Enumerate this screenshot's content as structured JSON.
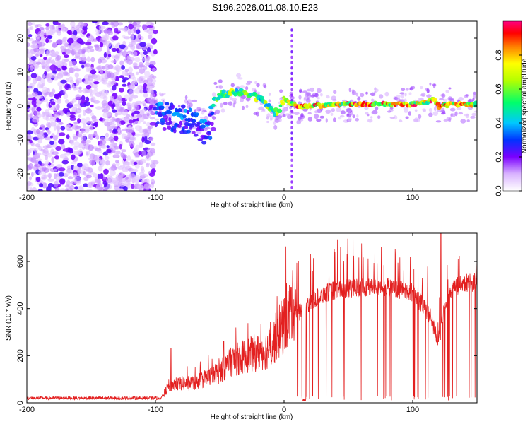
{
  "title": "S196.2026.011.08.10.E23",
  "chart_data": [
    {
      "type": "heatmap",
      "xlabel": "Height of straight line (km)",
      "ylabel": "Frequency (Hz)",
      "xlim": [
        -200,
        150
      ],
      "ylim": [
        -25,
        25
      ],
      "xticks": [
        "-200",
        "-100",
        "0",
        "100"
      ],
      "yticks": [
        "-20",
        "-10",
        "0",
        "10",
        "20"
      ],
      "colorbar": {
        "label": "Normalized spectral amplitude",
        "range": [
          0,
          1
        ],
        "ticks": [
          "0.0",
          "0.2",
          "0.4",
          "0.6",
          "0.8"
        ]
      },
      "description_series": {
        "noise_region_km": [
          -200,
          -100
        ],
        "trace": {
          "name": "dominant frequency ridge",
          "x": [
            -100,
            -92,
            -85,
            -78,
            -72,
            -66,
            -62,
            -58,
            -54,
            -48,
            -40,
            -32,
            -24,
            -18,
            -14,
            -10,
            -7,
            -4,
            0,
            4,
            10,
            20,
            40,
            60,
            80,
            100,
            110,
            116,
            120,
            130,
            150
          ],
          "y": [
            0,
            -1,
            -1.5,
            -2,
            -3,
            -4,
            -6,
            -4,
            2,
            3.5,
            4,
            4,
            3,
            2,
            1,
            -1,
            -2,
            -1,
            2,
            1,
            0,
            0,
            0.5,
            0.5,
            0.5,
            0.5,
            1,
            2,
            0,
            0.5,
            0.5
          ]
        }
      }
    },
    {
      "type": "line",
      "xlabel": "Height of straight line (km)",
      "ylabel": "SNR (10 * v/v)",
      "xlim": [
        -200,
        150
      ],
      "ylim": [
        0,
        720
      ],
      "xticks": [
        "-200",
        "-100",
        "0",
        "100"
      ],
      "yticks": [
        "0",
        "200",
        "400",
        "600"
      ],
      "color": "#e32020",
      "series": [
        {
          "name": "SNR",
          "envelope_x": [
            -200,
            -95,
            -90,
            -80,
            -70,
            -60,
            -50,
            -40,
            -30,
            -20,
            -10,
            -5,
            0,
            5,
            10,
            15,
            20,
            30,
            40,
            60,
            80,
            100,
            110,
            115,
            120,
            125,
            130,
            140,
            150
          ],
          "envelope_y": [
            20,
            20,
            60,
            70,
            70,
            90,
            110,
            150,
            170,
            180,
            200,
            250,
            280,
            330,
            380,
            400,
            430,
            460,
            480,
            490,
            490,
            470,
            400,
            350,
            260,
            400,
            480,
            510,
            510
          ],
          "notable_spikes": [
            {
              "x": -88,
              "y": 230
            },
            {
              "x": -47,
              "y": 260
            },
            {
              "x": 11,
              "y": 600
            },
            {
              "x": 122,
              "y": 720
            }
          ]
        }
      ]
    }
  ]
}
